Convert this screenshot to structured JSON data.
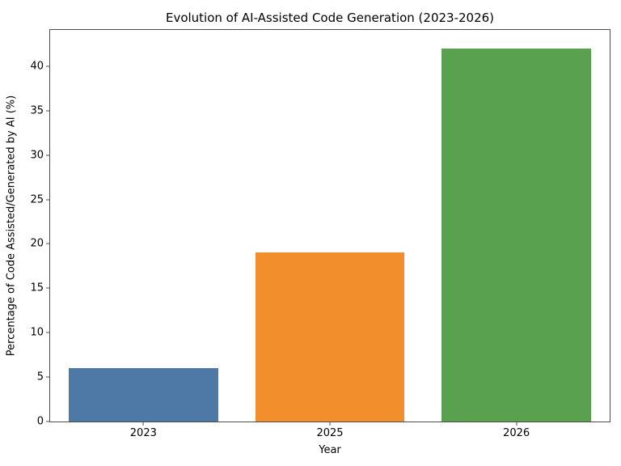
{
  "chart_data": {
    "type": "bar",
    "title": "Evolution of AI-Assisted Code Generation (2023-2026)",
    "xlabel": "Year",
    "ylabel": "Percentage of Code Assisted/Generated by AI (%)",
    "categories": [
      "2023",
      "2025",
      "2026"
    ],
    "values": [
      6,
      19,
      42
    ],
    "bar_colors": [
      "#4E79A7",
      "#F28E2B",
      "#59A14F"
    ],
    "yticks": [
      0,
      5,
      10,
      15,
      20,
      25,
      30,
      35,
      40
    ],
    "ylim": [
      0,
      44.1
    ],
    "grid": false,
    "legend": "none",
    "bar_width_fraction": 0.8,
    "background_color": "#ffffff",
    "spine_color": "#4d4d4d",
    "text_color": "#000000"
  }
}
